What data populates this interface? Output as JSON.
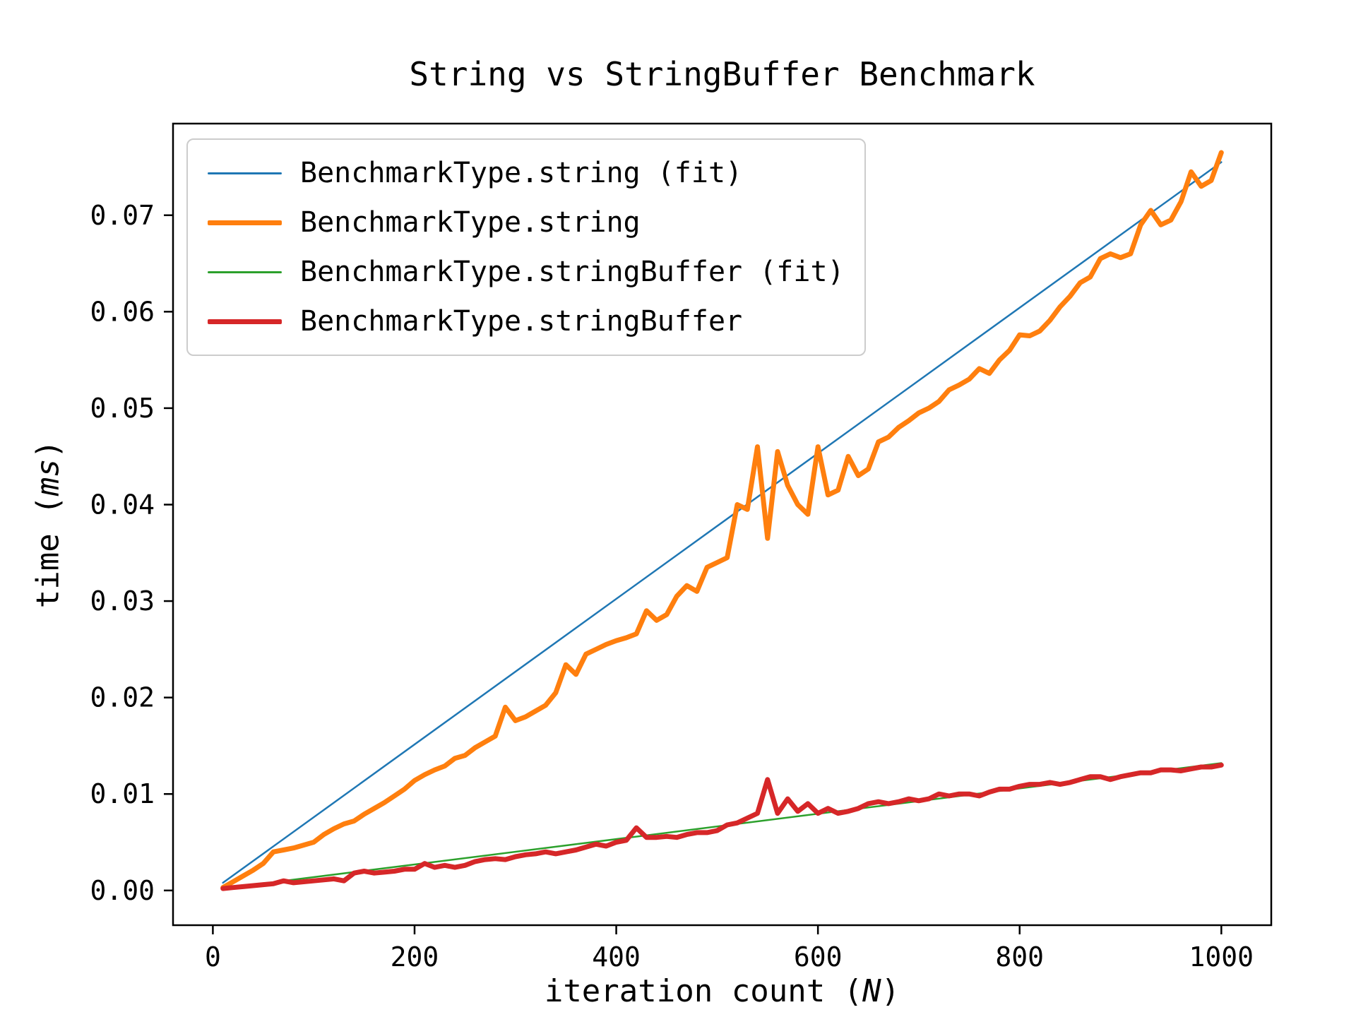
{
  "chart_data": {
    "type": "line",
    "title": "String vs StringBuffer Benchmark",
    "xlabel_parts": {
      "prefix": "iteration count (",
      "italic": "N",
      "suffix": ")"
    },
    "ylabel_parts": {
      "prefix": "time (",
      "italic": "ms",
      "suffix": ")"
    },
    "xlim": [
      -39.5,
      1049.5
    ],
    "ylim": [
      -0.0036,
      0.0795
    ],
    "xticks": [
      0,
      200,
      400,
      600,
      800,
      1000
    ],
    "yticks": [
      0,
      0.01,
      0.02,
      0.03,
      0.04,
      0.05,
      0.06,
      0.07
    ],
    "ytick_labels": [
      "0.00",
      "0.01",
      "0.02",
      "0.03",
      "0.04",
      "0.05",
      "0.06",
      "0.07"
    ],
    "grid": false,
    "legend_position": "upper-left",
    "x": [
      10,
      20,
      30,
      40,
      50,
      60,
      70,
      80,
      90,
      100,
      110,
      120,
      130,
      140,
      150,
      160,
      170,
      180,
      190,
      200,
      210,
      220,
      230,
      240,
      250,
      260,
      270,
      280,
      290,
      300,
      310,
      320,
      330,
      340,
      350,
      360,
      370,
      380,
      390,
      400,
      410,
      420,
      430,
      440,
      450,
      460,
      470,
      480,
      490,
      500,
      510,
      520,
      530,
      540,
      550,
      560,
      570,
      580,
      590,
      600,
      610,
      620,
      630,
      640,
      650,
      660,
      670,
      680,
      690,
      700,
      710,
      720,
      730,
      740,
      750,
      760,
      770,
      780,
      790,
      800,
      810,
      820,
      830,
      840,
      850,
      860,
      870,
      880,
      890,
      900,
      910,
      920,
      930,
      940,
      950,
      960,
      970,
      980,
      990,
      1000
    ],
    "series": [
      {
        "name": "BenchmarkType.string (fit)",
        "color": "#1f77b4",
        "width": 2.5,
        "x": [
          10,
          1000
        ],
        "y": [
          0.0008,
          0.0755
        ]
      },
      {
        "name": "BenchmarkType.string",
        "color": "#ff7f0e",
        "width": 7,
        "y": [
          0.0003,
          0.0009,
          0.0015,
          0.0021,
          0.0028,
          0.004,
          0.0042,
          0.0044,
          0.0047,
          0.005,
          0.0058,
          0.0064,
          0.0069,
          0.0072,
          0.0079,
          0.0085,
          0.0091,
          0.0098,
          0.0105,
          0.0114,
          0.012,
          0.0125,
          0.0129,
          0.0137,
          0.014,
          0.0148,
          0.0154,
          0.016,
          0.019,
          0.0176,
          0.018,
          0.0186,
          0.0192,
          0.0205,
          0.0234,
          0.0224,
          0.0245,
          0.025,
          0.0255,
          0.0259,
          0.0262,
          0.0266,
          0.029,
          0.028,
          0.0286,
          0.0305,
          0.0316,
          0.031,
          0.0335,
          0.034,
          0.0345,
          0.04,
          0.0395,
          0.046,
          0.0365,
          0.0455,
          0.042,
          0.04,
          0.039,
          0.046,
          0.041,
          0.0415,
          0.045,
          0.043,
          0.0437,
          0.0465,
          0.047,
          0.048,
          0.0487,
          0.0495,
          0.05,
          0.0507,
          0.0519,
          0.0524,
          0.053,
          0.0541,
          0.0536,
          0.055,
          0.056,
          0.0576,
          0.0575,
          0.058,
          0.0591,
          0.0605,
          0.0616,
          0.063,
          0.0636,
          0.0655,
          0.066,
          0.0656,
          0.066,
          0.069,
          0.0705,
          0.069,
          0.0695,
          0.0714,
          0.0745,
          0.073,
          0.0736,
          0.0765
        ]
      },
      {
        "name": "BenchmarkType.stringBuffer (fit)",
        "color": "#2ca02c",
        "width": 2.5,
        "x": [
          10,
          1000
        ],
        "y": [
          0.0002,
          0.0132
        ]
      },
      {
        "name": "BenchmarkType.stringBuffer",
        "color": "#d62728",
        "width": 7,
        "y": [
          0.0002,
          0.0003,
          0.0004,
          0.0005,
          0.0006,
          0.0007,
          0.001,
          0.0008,
          0.0009,
          0.001,
          0.0011,
          0.0012,
          0.001,
          0.0018,
          0.002,
          0.0018,
          0.0019,
          0.002,
          0.0022,
          0.0022,
          0.0028,
          0.0024,
          0.0026,
          0.0024,
          0.0026,
          0.003,
          0.0032,
          0.0033,
          0.0032,
          0.0035,
          0.0037,
          0.0038,
          0.004,
          0.0038,
          0.004,
          0.0042,
          0.0045,
          0.0048,
          0.0046,
          0.005,
          0.0052,
          0.0065,
          0.0055,
          0.0055,
          0.0056,
          0.0055,
          0.0058,
          0.006,
          0.006,
          0.0062,
          0.0068,
          0.007,
          0.0075,
          0.008,
          0.0115,
          0.008,
          0.0095,
          0.0082,
          0.009,
          0.008,
          0.0085,
          0.008,
          0.0082,
          0.0085,
          0.009,
          0.0092,
          0.009,
          0.0092,
          0.0095,
          0.0093,
          0.0095,
          0.01,
          0.0098,
          0.01,
          0.01,
          0.0098,
          0.0102,
          0.0105,
          0.0105,
          0.0108,
          0.011,
          0.011,
          0.0112,
          0.011,
          0.0112,
          0.0115,
          0.0118,
          0.0118,
          0.0115,
          0.0118,
          0.012,
          0.0122,
          0.0122,
          0.0125,
          0.0125,
          0.0124,
          0.0126,
          0.0128,
          0.0128,
          0.013
        ]
      }
    ],
    "axis_color": "#000000",
    "legend_border_color": "#cccccc"
  }
}
